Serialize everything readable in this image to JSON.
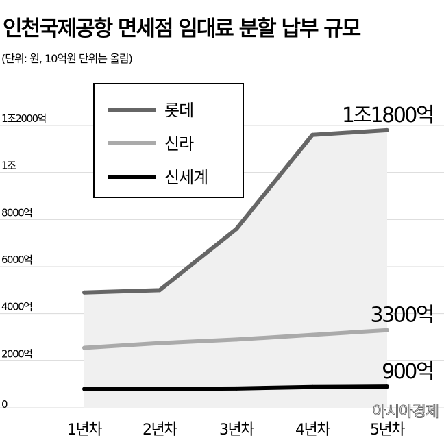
{
  "chart_data": {
    "type": "line",
    "title": "인천국제공항 면세점 임대료 분할 납부 규모",
    "subtitle": "(단위: 원, 10억원 단위는 올림)",
    "categories": [
      "1년차",
      "2년차",
      "3년차",
      "4년차",
      "5년차"
    ],
    "y_ticks": [
      {
        "value": 0,
        "label": "0"
      },
      {
        "value": 2000,
        "label": "2000억"
      },
      {
        "value": 4000,
        "label": "4000억"
      },
      {
        "value": 6000,
        "label": "6000억"
      },
      {
        "value": 8000,
        "label": "8000억"
      },
      {
        "value": 10000,
        "label": "1조"
      },
      {
        "value": 12000,
        "label": "1조2000억"
      }
    ],
    "ylim": [
      0,
      12000
    ],
    "grid": true,
    "legend_position": "top-left",
    "series": [
      {
        "name": "롯데",
        "color": "#666666",
        "values": [
          4900,
          5000,
          7600,
          11600,
          11800
        ],
        "end_label": "1조1800억"
      },
      {
        "name": "신라",
        "color": "#aaaaaa",
        "values": [
          2550,
          2750,
          2900,
          3100,
          3300
        ],
        "end_label": "3300억"
      },
      {
        "name": "신세계",
        "color": "#000000",
        "values": [
          800,
          800,
          820,
          880,
          900
        ],
        "end_label": "900억"
      }
    ],
    "fill_under_series": "롯데",
    "watermark": "아시아경제"
  }
}
